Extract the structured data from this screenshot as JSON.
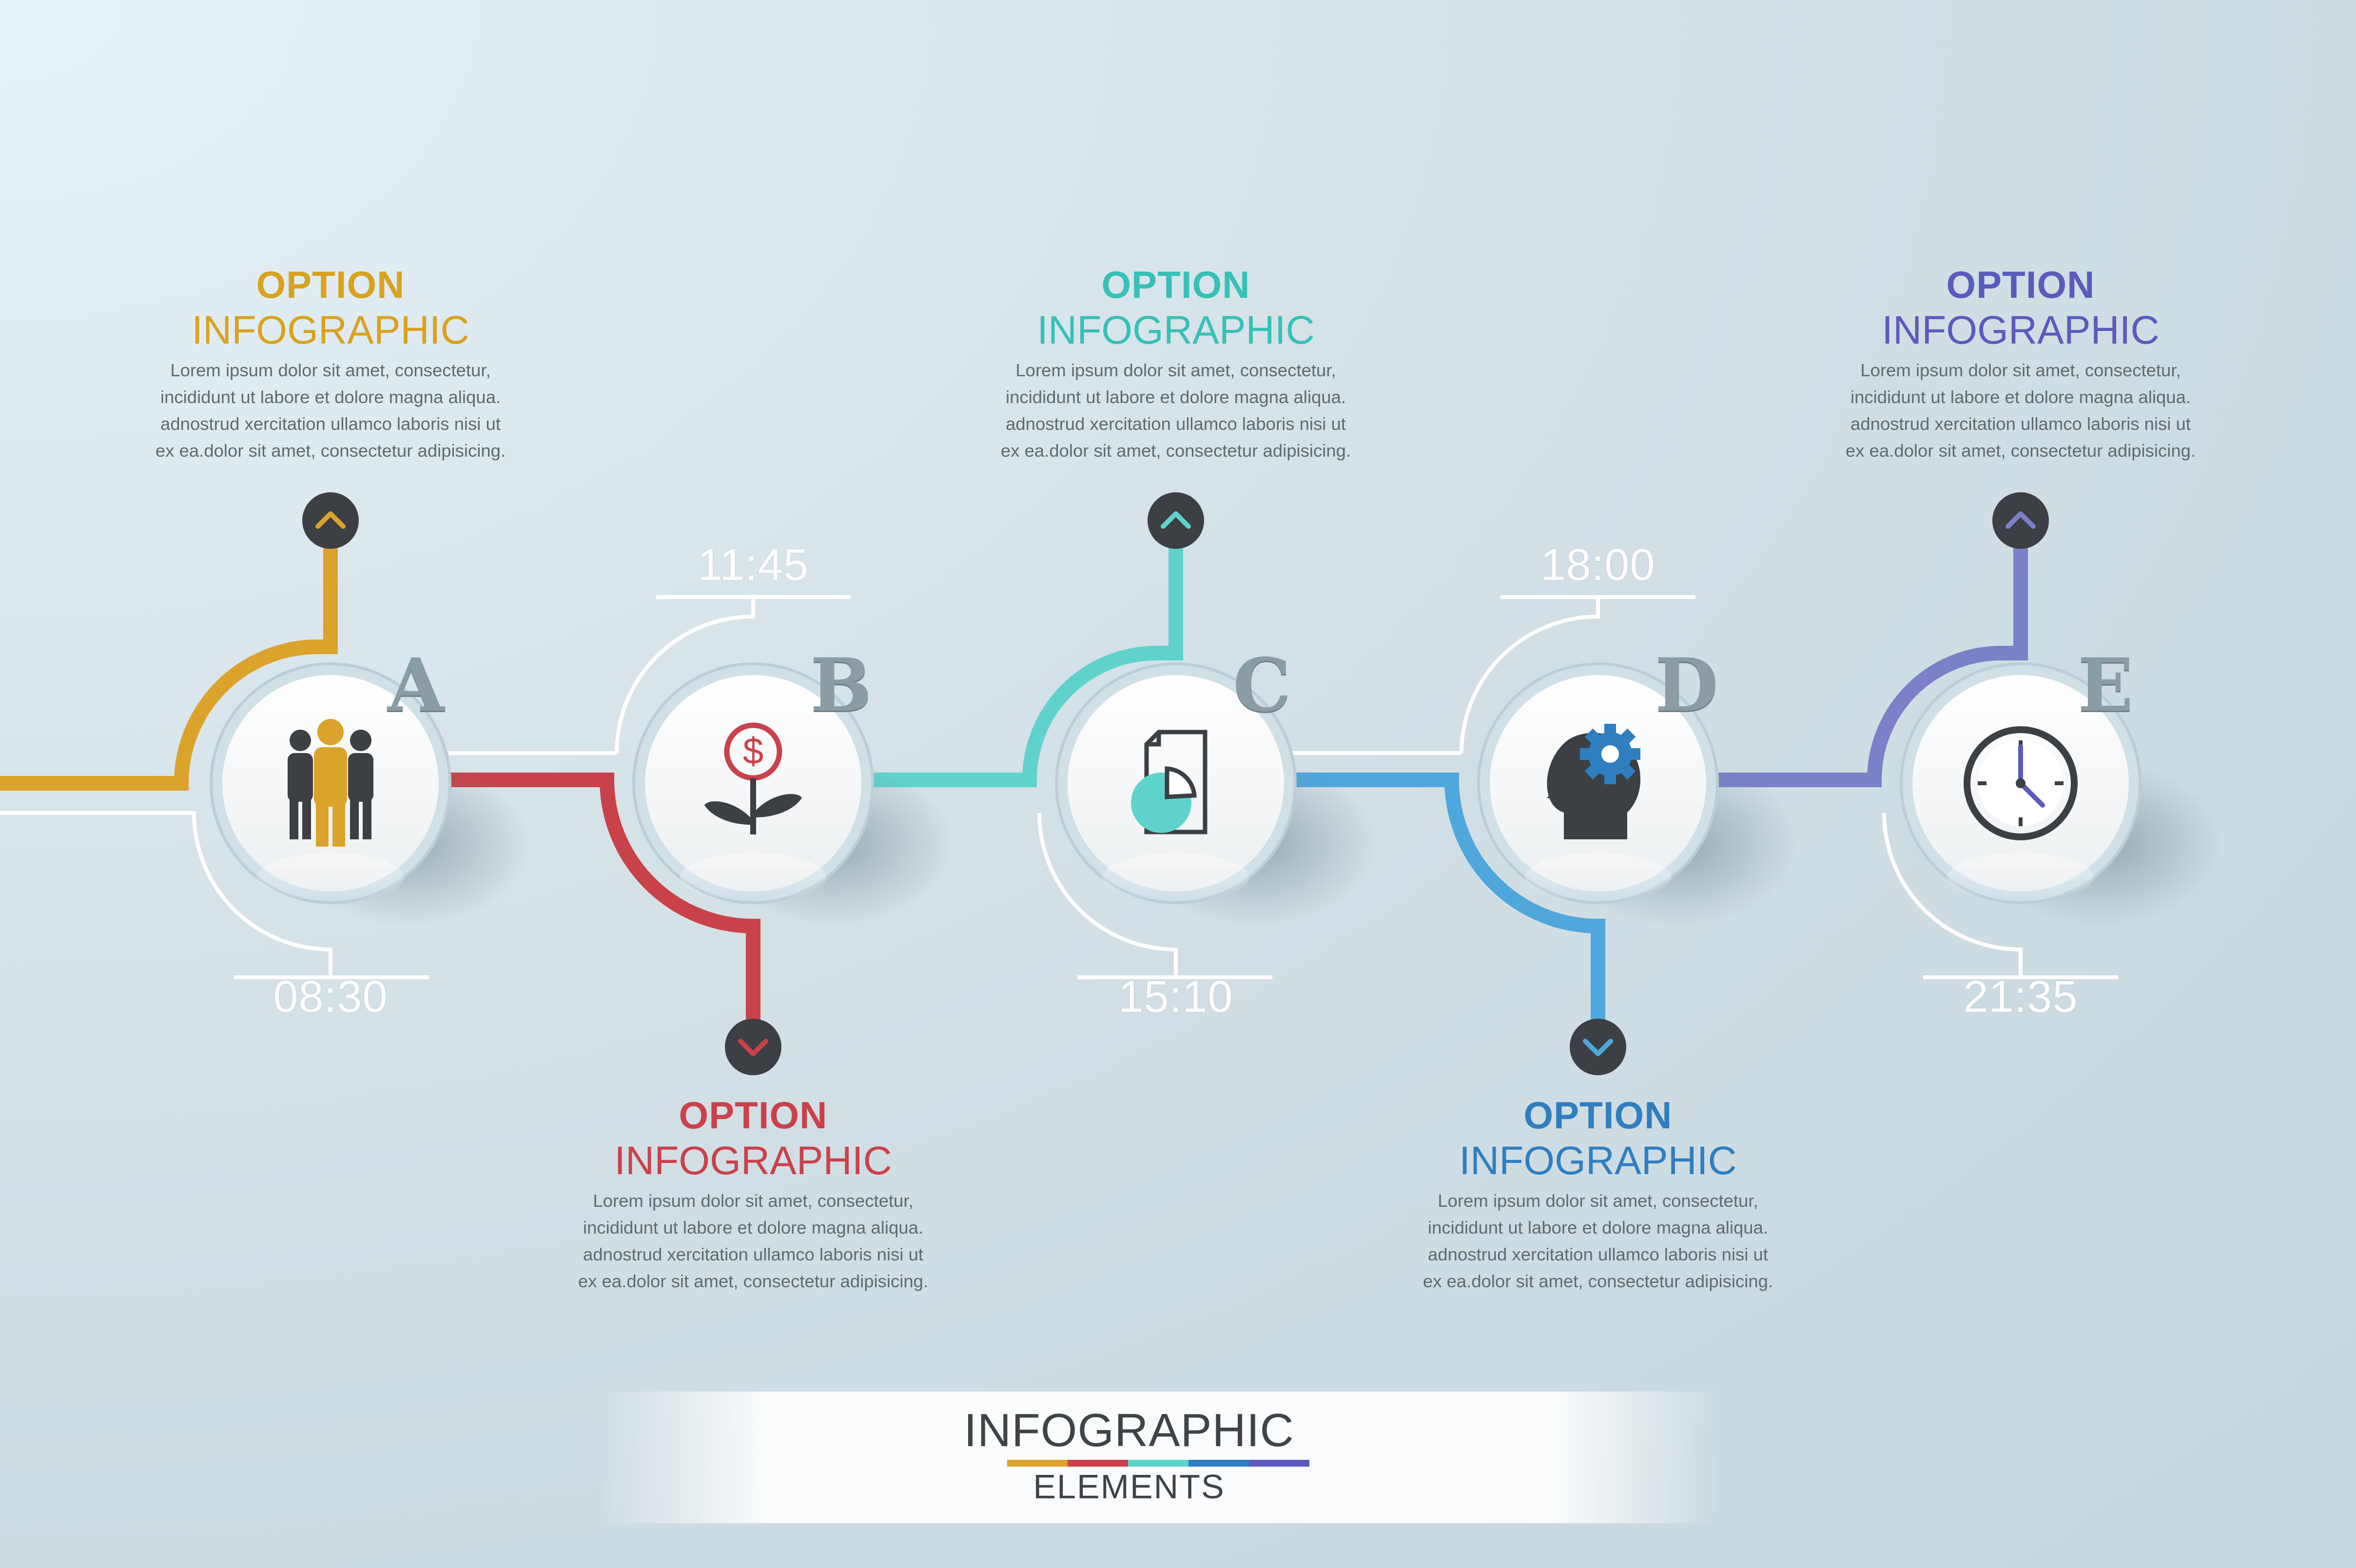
{
  "colors": {
    "a": "#dba32b",
    "b": "#c9424a",
    "c": "#5fd3cb",
    "d": "#4fa7dc",
    "e": "#7b80c8",
    "title_a": "#d9a21f",
    "title_b": "#c9424a",
    "title_c": "#36c1b4",
    "title_d": "#2f7fc0",
    "title_e": "#5a5bbd",
    "dark": "#3c3f43"
  },
  "steps": [
    {
      "letter": "A",
      "icon": "people-icon",
      "time": "08:30",
      "option_title": "OPTION",
      "option_subtitle": "INFOGRAPHIC",
      "body": [
        "Lorem ipsum dolor sit amet, consectetur,",
        "incididunt ut labore et dolore magna aliqua.",
        "adnostrud xercitation ullamco laboris nisi ut",
        "ex ea.dolor sit amet, consectetur adipisicing."
      ]
    },
    {
      "letter": "B",
      "icon": "money-plant-icon",
      "time": "11:45",
      "option_title": "OPTION",
      "option_subtitle": "INFOGRAPHIC",
      "body": [
        "Lorem ipsum dolor sit amet, consectetur,",
        "incididunt ut labore et dolore magna aliqua.",
        "adnostrud xercitation ullamco laboris nisi ut",
        "ex ea.dolor sit amet, consectetur adipisicing."
      ]
    },
    {
      "letter": "C",
      "icon": "document-chart-icon",
      "time": "15:10",
      "option_title": "OPTION",
      "option_subtitle": "INFOGRAPHIC",
      "body": [
        "Lorem ipsum dolor sit amet, consectetur,",
        "incididunt ut labore et dolore magna aliqua.",
        "adnostrud xercitation ullamco laboris nisi ut",
        "ex ea.dolor sit amet, consectetur adipisicing."
      ]
    },
    {
      "letter": "D",
      "icon": "head-gear-icon",
      "time": "18:00",
      "option_title": "OPTION",
      "option_subtitle": "INFOGRAPHIC",
      "body": [
        "Lorem ipsum dolor sit amet, consectetur,",
        "incididunt ut labore et dolore magna aliqua.",
        "adnostrud xercitation ullamco laboris nisi ut",
        "ex ea.dolor sit amet, consectetur adipisicing."
      ]
    },
    {
      "letter": "E",
      "icon": "clock-icon",
      "time": "21:35",
      "option_title": "OPTION",
      "option_subtitle": "INFOGRAPHIC",
      "body": [
        "Lorem ipsum dolor sit amet, consectetur,",
        "incididunt ut labore et dolore magna aliqua.",
        "adnostrud xercitation ullamco laboris nisi ut",
        "ex ea.dolor sit amet, consectetur adipisicing."
      ]
    }
  ],
  "footer": {
    "title": "INFOGRAPHIC",
    "subtitle": "ELEMENTS"
  }
}
